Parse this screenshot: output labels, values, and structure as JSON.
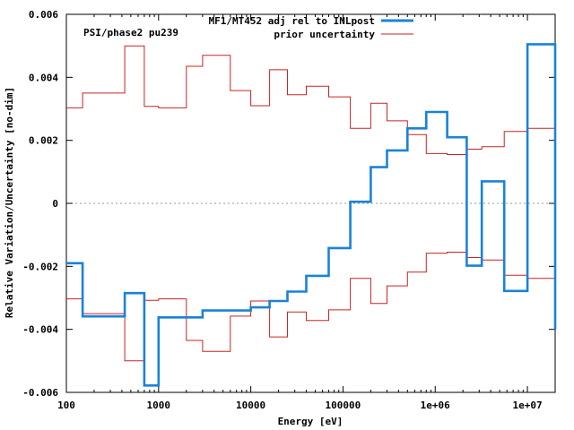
{
  "chart_data": {
    "type": "line",
    "annotation": "PSI/phase2 pu239",
    "xlabel": "Energy [eV]",
    "ylabel": "Relative Variation/Uncertainty [no-dim]",
    "xscale": "log",
    "xlim": [
      100,
      20000000
    ],
    "ylim": [
      -0.006,
      0.006
    ],
    "x_ticks": [
      {
        "value": 100,
        "label": "100"
      },
      {
        "value": 1000,
        "label": "1000"
      },
      {
        "value": 10000,
        "label": "10000"
      },
      {
        "value": 100000,
        "label": "100000"
      },
      {
        "value": 1000000,
        "label": "1e+06"
      },
      {
        "value": 10000000,
        "label": "1e+07"
      }
    ],
    "y_ticks": [
      {
        "value": 0.006,
        "label": "0.006"
      },
      {
        "value": 0.004,
        "label": "0.004"
      },
      {
        "value": 0.002,
        "label": "0.002"
      },
      {
        "value": 0,
        "label": "0"
      },
      {
        "value": -0.002,
        "label": "-0.002"
      },
      {
        "value": -0.004,
        "label": "-0.004"
      },
      {
        "value": -0.006,
        "label": "-0.006"
      }
    ],
    "zero_line": true,
    "legend": "top-right",
    "bin_edges": [
      100,
      150,
      300,
      430,
      700,
      1000,
      2000,
      3000,
      6000,
      10000,
      16000,
      25000,
      40000,
      70000,
      120000,
      200000,
      300000,
      500000,
      800000,
      1350000,
      2200000,
      3200000,
      5600000,
      10000000,
      20000000
    ],
    "series": [
      {
        "name": "MF1/MT452 adj rel to INLpost",
        "color": "#1a82d9",
        "style": "thick-step",
        "values": [
          -0.0019,
          -0.00359,
          -0.00359,
          -0.00285,
          -0.00578,
          -0.00362,
          -0.00362,
          -0.0034,
          -0.0034,
          -0.0033,
          -0.0031,
          -0.0028,
          -0.0023,
          -0.00142,
          5e-05,
          0.00115,
          0.00168,
          0.00238,
          0.0029,
          0.0021,
          -0.00198,
          0.0007,
          -0.00278,
          0.00505,
          -0.004
        ]
      },
      {
        "name": "prior uncertainty",
        "color": "#cc2222",
        "style": "thin-step-symmetric",
        "values": [
          0.00303,
          0.0035,
          0.0035,
          0.005,
          0.00308,
          0.00303,
          0.00435,
          0.0047,
          0.00358,
          0.0031,
          0.00424,
          0.00345,
          0.00372,
          0.00338,
          0.00238,
          0.00318,
          0.00262,
          0.00218,
          0.00158,
          0.00155,
          0.00172,
          0.0018,
          0.00228,
          0.00238,
          0.004
        ]
      }
    ]
  }
}
